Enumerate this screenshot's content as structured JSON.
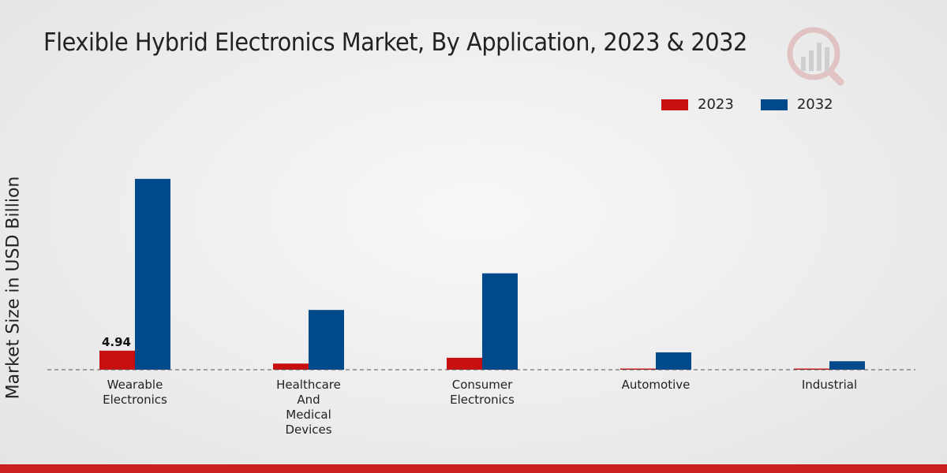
{
  "header": {
    "title": "Flexible Hybrid Electronics Market, By Application, 2023 & 2032"
  },
  "colors": {
    "series_2023": "#c80f0f",
    "series_2032": "#004a8c",
    "bottom_bar": "#cc1f1f"
  },
  "chart_data": {
    "type": "bar",
    "title": "Flexible Hybrid Electronics Market, By Application, 2023 & 2032",
    "xlabel": "",
    "ylabel": "Market Size in USD Billion",
    "ylim": [
      0,
      55
    ],
    "grid": false,
    "legend_position": "top-right",
    "categories": [
      [
        "Wearable",
        "Electronics"
      ],
      [
        "Healthcare",
        "And",
        "Medical",
        "Devices"
      ],
      [
        "Consumer",
        "Electronics"
      ],
      [
        "Automotive"
      ],
      [
        "Industrial"
      ]
    ],
    "series": [
      {
        "name": "2023",
        "values": [
          4.94,
          1.6,
          3.1,
          0.3,
          0.3
        ]
      },
      {
        "name": "2032",
        "values": [
          49.5,
          15.5,
          25.0,
          4.5,
          2.2
        ]
      }
    ],
    "data_labels": [
      {
        "series": 0,
        "index": 0,
        "text": "4.94"
      }
    ]
  }
}
